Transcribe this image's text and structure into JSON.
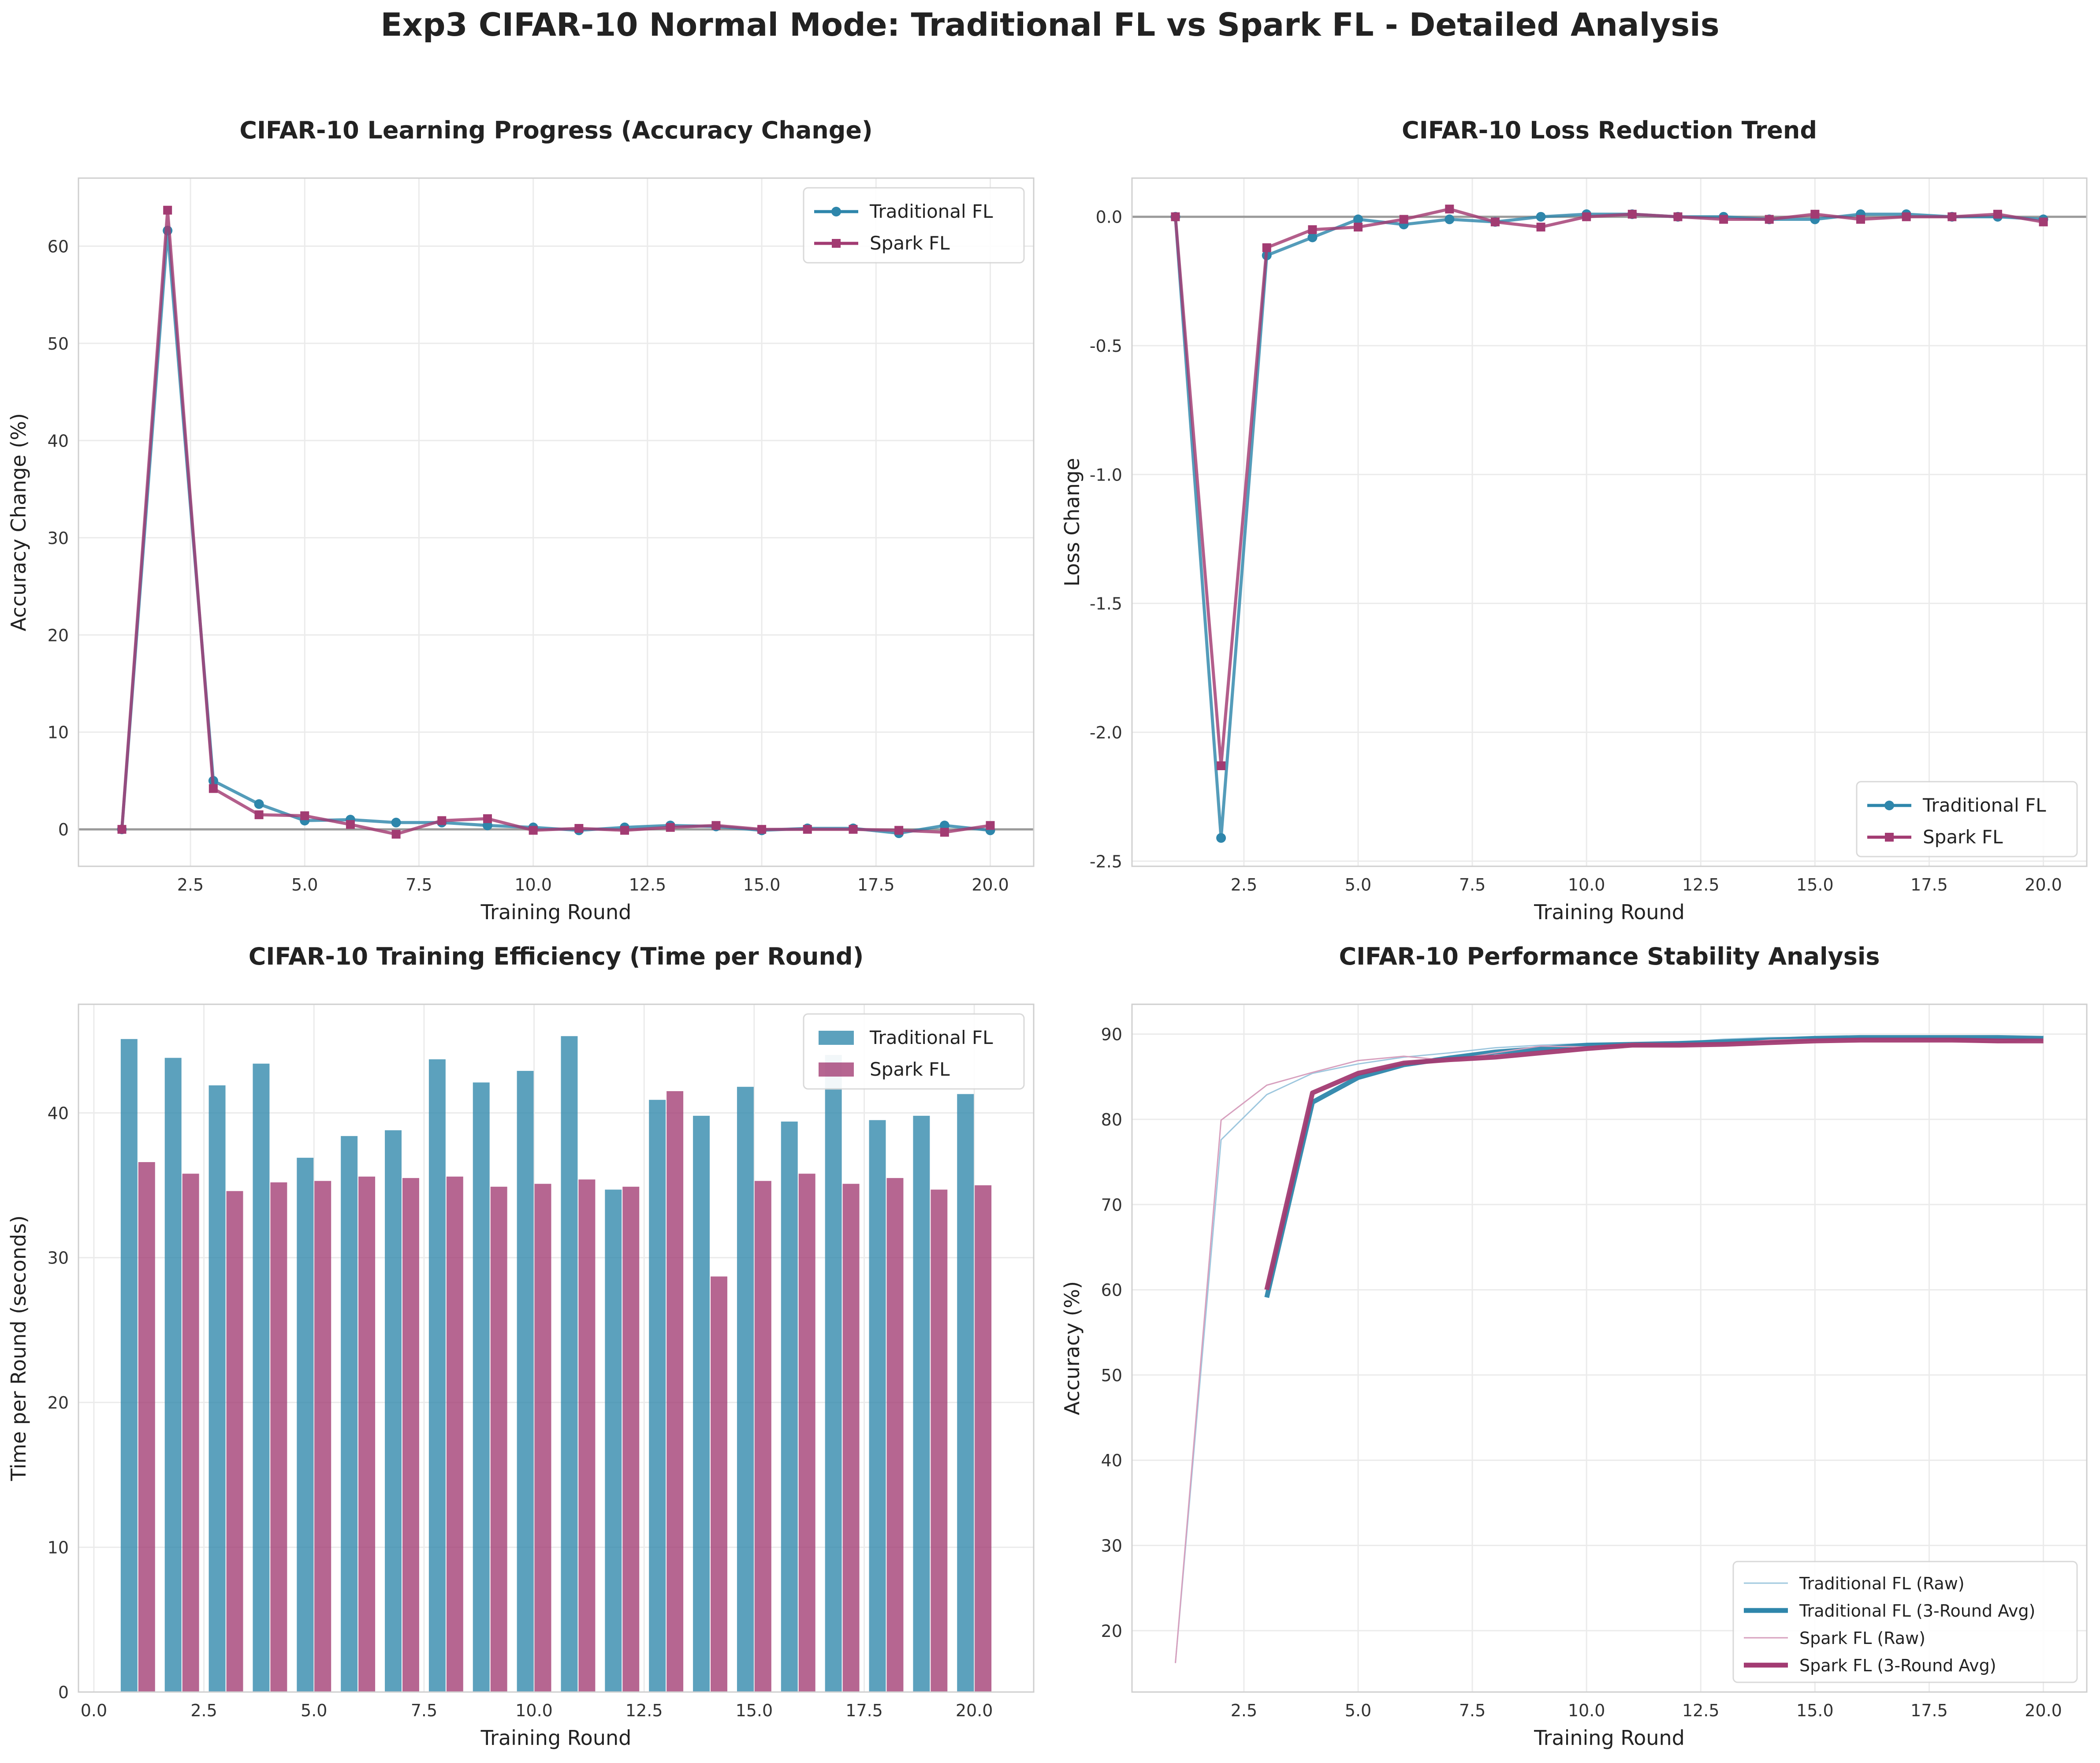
{
  "figure_title": "Exp3 CIFAR-10 Normal Mode: Traditional FL vs Spark FL - Detailed Analysis",
  "colors": {
    "traditional": "#2E86AB",
    "spark": "#A23B72",
    "traditional_raw": "#9EC7DE",
    "spark_raw": "#D7A0BE",
    "grid": "#EBEBEB",
    "zero_line": "#9A9A9A"
  },
  "chart_data": [
    {
      "type": "line",
      "title": "CIFAR-10 Learning Progress (Accuracy Change)",
      "xlabel": "Training Round",
      "ylabel": "Accuracy Change (%)",
      "xlim": [
        0.05,
        20.95
      ],
      "ylim": [
        -3.8,
        67
      ],
      "xticks": [
        2.5,
        5.0,
        7.5,
        10.0,
        12.5,
        15.0,
        17.5,
        20.0
      ],
      "xtick_labels": [
        "2.5",
        "5.0",
        "7.5",
        "10.0",
        "12.5",
        "15.0",
        "17.5",
        "20.0"
      ],
      "yticks": [
        0,
        10,
        20,
        30,
        40,
        50,
        60
      ],
      "ytick_labels": [
        "0",
        "10",
        "20",
        "30",
        "40",
        "50",
        "60"
      ],
      "zero_line": true,
      "legend_position": "top-right",
      "x": [
        1,
        2,
        3,
        4,
        5,
        6,
        7,
        8,
        9,
        10,
        11,
        12,
        13,
        14,
        15,
        16,
        17,
        18,
        19,
        20
      ],
      "series": [
        {
          "name": "Traditional FL",
          "marker": "circle",
          "values": [
            0,
            61.6,
            5.0,
            2.6,
            0.9,
            1.0,
            0.7,
            0.7,
            0.4,
            0.2,
            -0.1,
            0.2,
            0.4,
            0.3,
            -0.1,
            0.1,
            0.1,
            -0.4,
            0.4,
            -0.1
          ]
        },
        {
          "name": "Spark FL",
          "marker": "square",
          "values": [
            0,
            63.7,
            4.2,
            1.5,
            1.4,
            0.5,
            -0.5,
            0.9,
            1.1,
            -0.1,
            0.1,
            -0.1,
            0.2,
            0.4,
            0.0,
            0.0,
            0.0,
            -0.1,
            -0.3,
            0.4
          ]
        }
      ]
    },
    {
      "type": "line",
      "title": "CIFAR-10 Loss Reduction Trend",
      "xlabel": "Training Round",
      "ylabel": "Loss Change",
      "xlim": [
        0.05,
        20.95
      ],
      "ylim": [
        -2.52,
        0.15
      ],
      "xticks": [
        2.5,
        5.0,
        7.5,
        10.0,
        12.5,
        15.0,
        17.5,
        20.0
      ],
      "xtick_labels": [
        "2.5",
        "5.0",
        "7.5",
        "10.0",
        "12.5",
        "15.0",
        "17.5",
        "20.0"
      ],
      "yticks": [
        0.0,
        -0.5,
        -1.0,
        -1.5,
        -2.0,
        -2.5
      ],
      "ytick_labels": [
        "0.0",
        "-0.5",
        "-1.0",
        "-1.5",
        "-2.0",
        "-2.5"
      ],
      "zero_line": true,
      "legend_position": "bottom-right",
      "x": [
        1,
        2,
        3,
        4,
        5,
        6,
        7,
        8,
        9,
        10,
        11,
        12,
        13,
        14,
        15,
        16,
        17,
        18,
        19,
        20
      ],
      "series": [
        {
          "name": "Traditional FL",
          "marker": "circle",
          "values": [
            0,
            -2.41,
            -0.15,
            -0.08,
            -0.01,
            -0.03,
            -0.01,
            -0.02,
            0.0,
            0.01,
            0.01,
            0.0,
            0.0,
            -0.01,
            -0.01,
            0.01,
            0.01,
            0.0,
            0.0,
            -0.01
          ]
        },
        {
          "name": "Spark FL",
          "marker": "square",
          "values": [
            0,
            -2.13,
            -0.12,
            -0.05,
            -0.04,
            -0.01,
            0.03,
            -0.02,
            -0.04,
            0.0,
            0.01,
            0.0,
            -0.01,
            -0.01,
            0.01,
            -0.01,
            0.0,
            0.0,
            0.01,
            -0.02
          ]
        }
      ]
    },
    {
      "type": "bar",
      "title": "CIFAR-10 Training Efficiency (Time per Round)",
      "xlabel": "Training Round",
      "ylabel": "Time per Round (seconds)",
      "xlim": [
        -0.35,
        21.35
      ],
      "ylim": [
        0,
        47.5
      ],
      "xticks": [
        0.0,
        2.5,
        5.0,
        7.5,
        10.0,
        12.5,
        15.0,
        17.5,
        20.0
      ],
      "xtick_labels": [
        "0.0",
        "2.5",
        "5.0",
        "7.5",
        "10.0",
        "12.5",
        "15.0",
        "17.5",
        "20.0"
      ],
      "yticks": [
        0,
        10,
        20,
        30,
        40
      ],
      "ytick_labels": [
        "0",
        "10",
        "20",
        "30",
        "40"
      ],
      "legend_position": "top-right",
      "x": [
        1,
        2,
        3,
        4,
        5,
        6,
        7,
        8,
        9,
        10,
        11,
        12,
        13,
        14,
        15,
        16,
        17,
        18,
        19,
        20
      ],
      "series": [
        {
          "name": "Traditional FL",
          "values": [
            45.1,
            43.8,
            41.9,
            43.4,
            36.9,
            38.4,
            38.8,
            43.7,
            42.1,
            42.9,
            45.3,
            34.7,
            40.9,
            39.8,
            41.8,
            39.4,
            44.0,
            39.5,
            39.8,
            41.3
          ]
        },
        {
          "name": "Spark FL",
          "values": [
            36.6,
            35.8,
            34.6,
            35.2,
            35.3,
            35.6,
            35.5,
            35.6,
            34.9,
            35.1,
            35.4,
            34.9,
            41.5,
            28.7,
            35.3,
            35.8,
            35.1,
            35.5,
            34.7,
            35.0
          ]
        }
      ]
    },
    {
      "type": "line",
      "title": "CIFAR-10 Performance Stability Analysis",
      "xlabel": "Training Round",
      "ylabel": "Accuracy (%)",
      "xlim": [
        0.05,
        20.95
      ],
      "ylim": [
        12.8,
        93.5
      ],
      "xticks": [
        2.5,
        5.0,
        7.5,
        10.0,
        12.5,
        15.0,
        17.5,
        20.0
      ],
      "xtick_labels": [
        "2.5",
        "5.0",
        "7.5",
        "10.0",
        "12.5",
        "15.0",
        "17.5",
        "20.0"
      ],
      "yticks": [
        20,
        30,
        40,
        50,
        60,
        70,
        80,
        90
      ],
      "ytick_labels": [
        "20",
        "30",
        "40",
        "50",
        "60",
        "70",
        "80",
        "90"
      ],
      "legend_position": "bottom-right",
      "series": [
        {
          "name": "Traditional FL (Raw)",
          "style": "raw",
          "x": [
            1,
            2,
            3,
            4,
            5,
            6,
            7,
            8,
            9,
            10,
            11,
            12,
            13,
            14,
            15,
            16,
            17,
            18,
            19,
            20
          ],
          "values": [
            16.2,
            77.6,
            82.9,
            85.4,
            86.5,
            87.3,
            87.8,
            88.4,
            88.7,
            88.9,
            88.8,
            89.0,
            89.4,
            89.6,
            89.6,
            89.6,
            89.6,
            89.5,
            89.6,
            89.5
          ]
        },
        {
          "name": "Traditional FL (3-Round Avg)",
          "style": "avg",
          "x": [
            3,
            4,
            5,
            6,
            7,
            8,
            9,
            10,
            11,
            12,
            13,
            14,
            15,
            16,
            17,
            18,
            19,
            20
          ],
          "values": [
            59.1,
            82.0,
            84.9,
            86.4,
            87.2,
            87.9,
            88.3,
            88.7,
            88.8,
            88.9,
            89.1,
            89.3,
            89.5,
            89.6,
            89.6,
            89.6,
            89.6,
            89.5
          ]
        },
        {
          "name": "Spark FL (Raw)",
          "style": "raw",
          "x": [
            1,
            2,
            3,
            4,
            5,
            6,
            7,
            8,
            9,
            10,
            11,
            12,
            13,
            14,
            15,
            16,
            17,
            18,
            19,
            20
          ],
          "values": [
            16.2,
            79.9,
            84.0,
            85.5,
            86.9,
            87.4,
            86.9,
            87.8,
            88.6,
            88.5,
            88.9,
            88.8,
            88.8,
            89.3,
            89.4,
            89.4,
            89.4,
            89.3,
            89.0,
            89.4
          ]
        },
        {
          "name": "Spark FL (3-Round Avg)",
          "style": "avg",
          "x": [
            3,
            4,
            5,
            6,
            7,
            8,
            9,
            10,
            11,
            12,
            13,
            14,
            15,
            16,
            17,
            18,
            19,
            20
          ],
          "values": [
            60.0,
            83.1,
            85.4,
            86.6,
            87.0,
            87.3,
            87.8,
            88.3,
            88.7,
            88.7,
            88.8,
            89.0,
            89.2,
            89.3,
            89.3,
            89.3,
            89.2,
            89.2
          ]
        }
      ]
    }
  ]
}
